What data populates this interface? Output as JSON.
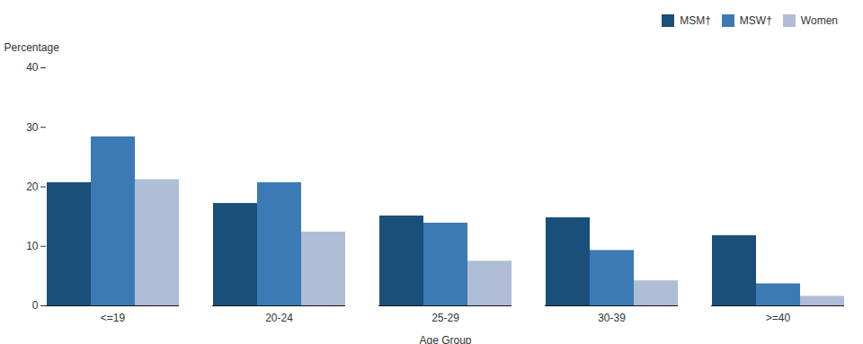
{
  "chart_data": {
    "type": "bar",
    "categories": [
      "<=19",
      "20-24",
      "25-29",
      "30-39",
      ">=40"
    ],
    "series": [
      {
        "name": "MSM†",
        "color": "#1a4f7a",
        "values": [
          20.7,
          17.2,
          15.1,
          14.8,
          11.8
        ]
      },
      {
        "name": "MSW†",
        "color": "#3b7ab5",
        "values": [
          28.4,
          20.7,
          13.9,
          9.3,
          3.7
        ]
      },
      {
        "name": "Women",
        "color": "#b0bdd6",
        "values": [
          21.2,
          12.4,
          7.5,
          4.2,
          1.6
        ]
      }
    ],
    "xlabel": "Age Group",
    "ylabel": "Percentage",
    "ylim": [
      0,
      40
    ],
    "yticks": [
      0,
      10,
      20,
      30,
      40
    ],
    "grid": false,
    "legend": "upper right"
  }
}
